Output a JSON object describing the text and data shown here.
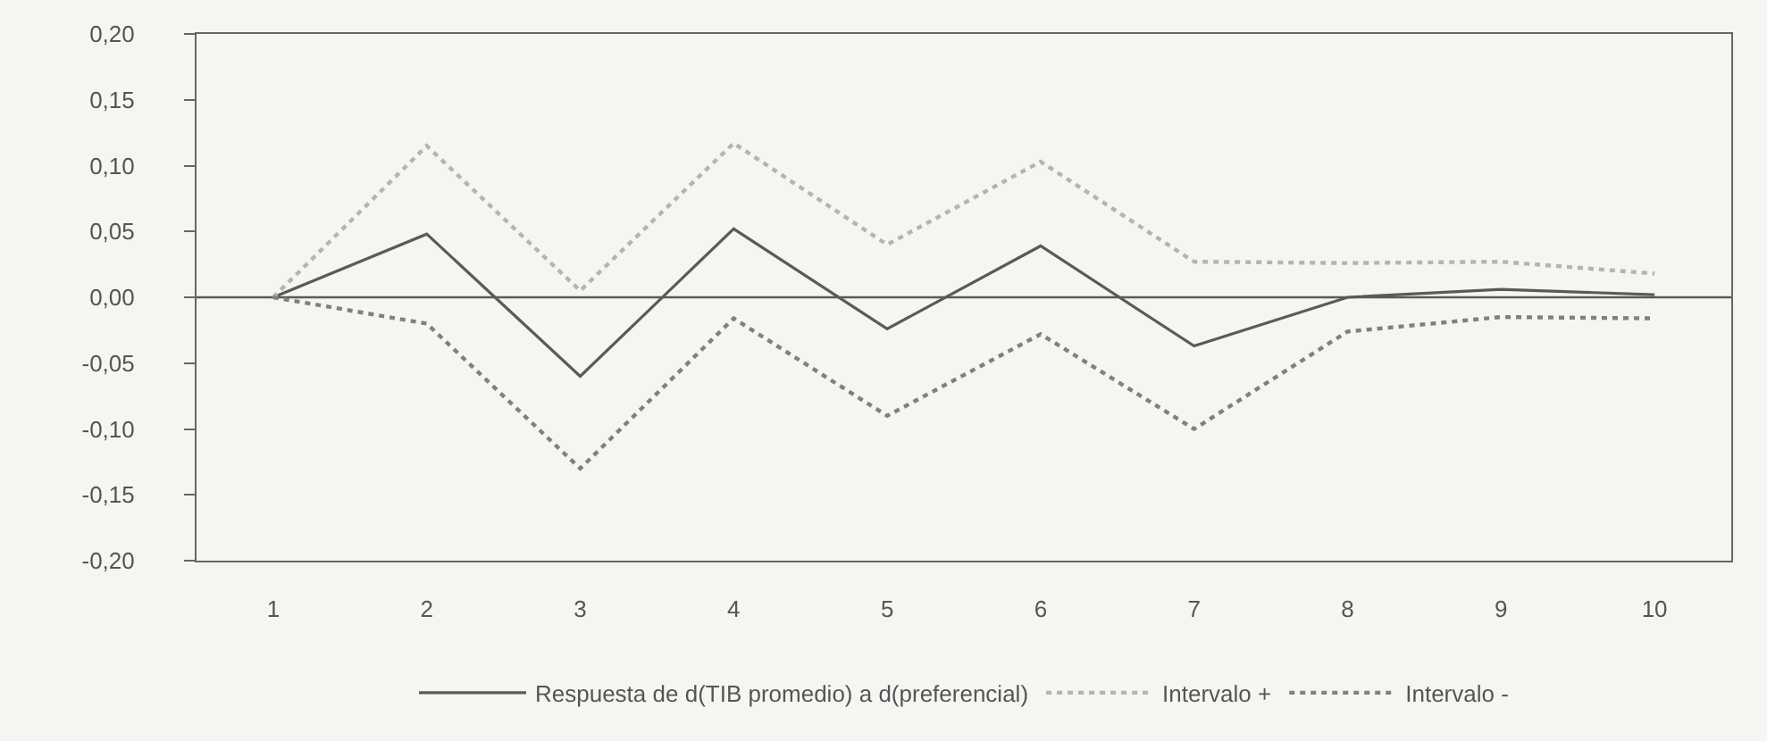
{
  "chart_data": {
    "type": "line",
    "categories": [
      "1",
      "2",
      "3",
      "4",
      "5",
      "6",
      "7",
      "8",
      "9",
      "10"
    ],
    "series": [
      {
        "name": "Respuesta de d(TIB promedio) a d(preferencial)",
        "color": "#5a5a5a",
        "line_style": "solid",
        "values": [
          0.0,
          0.048,
          -0.06,
          0.052,
          -0.024,
          0.039,
          -0.037,
          0.0,
          0.006,
          0.002
        ]
      },
      {
        "name": "Intervalo +",
        "color": "#b4b4b4",
        "line_style": "dotted",
        "values": [
          0.0,
          0.115,
          0.005,
          0.117,
          0.04,
          0.103,
          0.027,
          0.026,
          0.027,
          0.018
        ]
      },
      {
        "name": "Intervalo -",
        "color": "#808080",
        "line_style": "dotted",
        "values": [
          0.0,
          -0.02,
          -0.13,
          -0.016,
          -0.09,
          -0.028,
          -0.1,
          -0.026,
          -0.015,
          -0.016
        ]
      }
    ],
    "ylim": [
      -0.2,
      0.2
    ],
    "yticks": [
      {
        "value": -0.2,
        "label": "-0,20"
      },
      {
        "value": -0.15,
        "label": "-0,15"
      },
      {
        "value": -0.1,
        "label": "-0,10"
      },
      {
        "value": -0.05,
        "label": "-0,05"
      },
      {
        "value": 0,
        "label": "0,00"
      },
      {
        "value": 0.05,
        "label": "0,05"
      },
      {
        "value": 0.1,
        "label": "0,10"
      },
      {
        "value": 0.15,
        "label": "0,15"
      },
      {
        "value": 0.2,
        "label": "0,20"
      }
    ],
    "ref_lines": [
      {
        "axis": "y",
        "value": 0,
        "color": "#5a5a5a",
        "line_style": "solid"
      }
    ],
    "grid": false,
    "legend": "bottom",
    "marker": "none"
  }
}
